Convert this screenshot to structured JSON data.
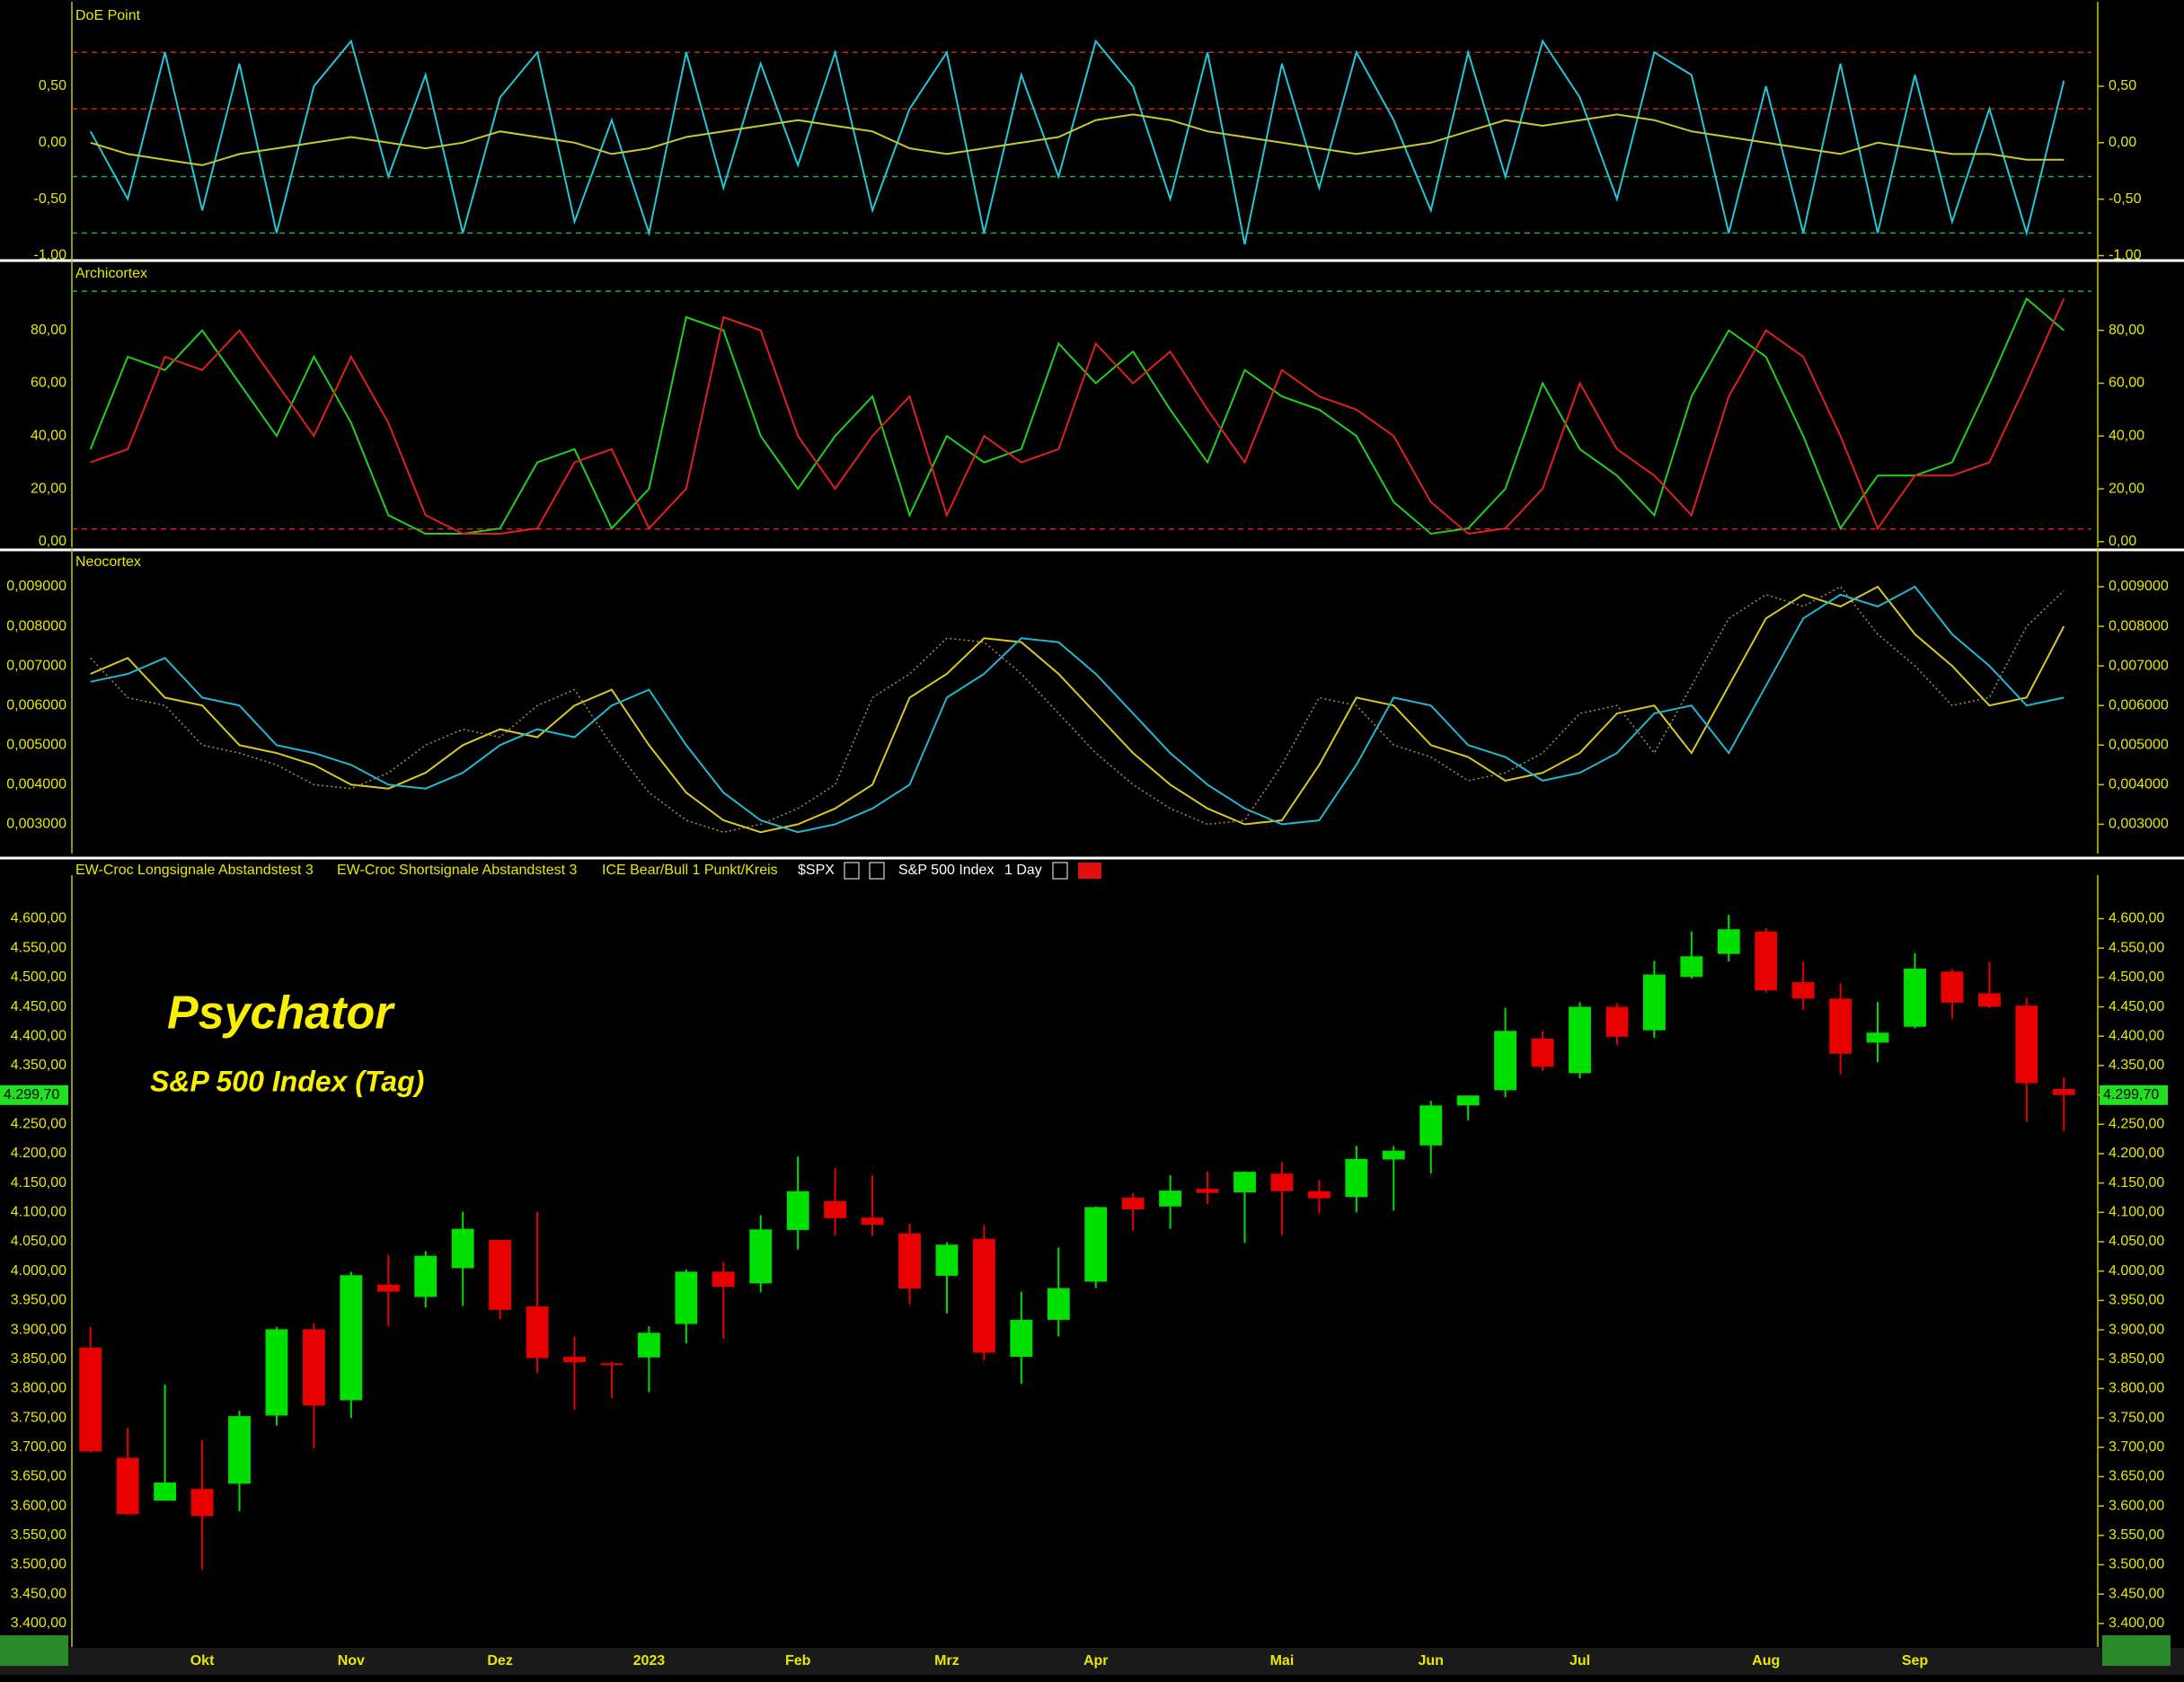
{
  "chart_data": [
    {
      "type": "line",
      "title": "DoE Point",
      "ylim": [
        -1.02,
        1.2
      ],
      "yticks": [
        {
          "value": 0.5,
          "label": "0,50"
        },
        {
          "value": 0,
          "label": "0,00"
        },
        {
          "value": -0.5,
          "label": "-0,50"
        },
        {
          "value": -1,
          "label": "-1,00"
        }
      ],
      "reference_lines": [
        {
          "value": 0.8,
          "color": "#d42020"
        },
        {
          "value": 0.3,
          "color": "#d42020"
        },
        {
          "value": -0.3,
          "color": "#20b040"
        },
        {
          "value": -0.8,
          "color": "#20b040"
        }
      ],
      "series": [
        {
          "color": "#20c8d8",
          "values": [
            0.1,
            -0.5,
            0.8,
            -0.6,
            0.7,
            -0.8,
            0.5,
            0.9,
            -0.3,
            0.6,
            -0.8,
            0.4,
            0.8,
            -0.7,
            0.2,
            -0.8,
            0.8,
            -0.4,
            0.7,
            -0.2,
            0.8,
            -0.6,
            0.3,
            0.8,
            -0.8,
            0.6,
            -0.3,
            0.9,
            0.5,
            -0.5,
            0.8,
            -0.9,
            0.7,
            -0.4,
            0.8,
            0.2,
            -0.6,
            0.8,
            -0.3,
            0.9,
            0.4,
            -0.5,
            0.8,
            0.6,
            -0.8,
            0.5,
            -0.8,
            0.7,
            -0.8,
            0.6,
            -0.7,
            0.3,
            -0.8,
            0.55
          ]
        },
        {
          "color": "#c8c830",
          "values": [
            0.0,
            -0.1,
            -0.15,
            -0.2,
            -0.1,
            -0.05,
            0.0,
            0.05,
            0.0,
            -0.05,
            0.0,
            0.1,
            0.05,
            0.0,
            -0.1,
            -0.05,
            0.05,
            0.1,
            0.15,
            0.2,
            0.15,
            0.1,
            -0.05,
            -0.1,
            -0.05,
            0.0,
            0.05,
            0.2,
            0.25,
            0.2,
            0.1,
            0.05,
            0.0,
            -0.05,
            -0.1,
            -0.05,
            0.0,
            0.1,
            0.2,
            0.15,
            0.2,
            0.25,
            0.2,
            0.1,
            0.05,
            0.0,
            -0.05,
            -0.1,
            0.0,
            -0.05,
            -0.1,
            -0.1,
            -0.15,
            -0.15
          ]
        }
      ]
    },
    {
      "type": "line",
      "title": "Archicortex",
      "ylim": [
        -2.1,
        105.4
      ],
      "yticks": [
        {
          "value": 0,
          "label": "0,00"
        },
        {
          "value": 20,
          "label": "20,00"
        },
        {
          "value": 40,
          "label": "40,00"
        },
        {
          "value": 60,
          "label": "60,00"
        },
        {
          "value": 80,
          "label": "80,00"
        }
      ],
      "reference_lines": [
        {
          "value": 94.8,
          "color": "#20b040"
        },
        {
          "value": 4.8,
          "color": "#d42020"
        }
      ],
      "series": [
        {
          "color": "#20d020",
          "values": [
            35,
            70,
            65,
            80,
            60,
            40,
            70,
            45,
            10,
            3,
            3,
            5,
            30,
            35,
            5,
            20,
            85,
            80,
            40,
            20,
            40,
            55,
            10,
            40,
            30,
            35,
            75,
            60,
            72,
            50,
            30,
            65,
            55,
            50,
            40,
            15,
            3,
            5,
            20,
            60,
            35,
            25,
            10,
            55,
            80,
            70,
            40,
            5,
            25,
            25,
            30,
            60,
            92,
            80
          ]
        },
        {
          "color": "#e02020",
          "values": [
            30,
            35,
            70,
            65,
            80,
            60,
            40,
            70,
            45,
            10,
            3,
            3,
            5,
            30,
            35,
            5,
            20,
            85,
            80,
            40,
            20,
            40,
            55,
            10,
            40,
            30,
            35,
            75,
            60,
            72,
            50,
            30,
            65,
            55,
            50,
            40,
            15,
            3,
            5,
            20,
            60,
            35,
            25,
            10,
            55,
            80,
            70,
            40,
            5,
            25,
            25,
            30,
            60,
            92
          ]
        }
      ]
    },
    {
      "type": "line",
      "title": "Neocortex",
      "ylim": [
        0.00226,
        0.00984
      ],
      "yticks": [
        {
          "value": 0.003,
          "label": "0,003000"
        },
        {
          "value": 0.004,
          "label": "0,004000"
        },
        {
          "value": 0.005,
          "label": "0,005000"
        },
        {
          "value": 0.006,
          "label": "0,006000"
        },
        {
          "value": 0.007,
          "label": "0,007000"
        },
        {
          "value": 0.008,
          "label": "0,008000"
        },
        {
          "value": 0.009,
          "label": "0,009000"
        }
      ],
      "series": [
        {
          "color": "#d8c820",
          "values": [
            0.0068,
            0.0072,
            0.0062,
            0.006,
            0.005,
            0.0048,
            0.0045,
            0.004,
            0.0039,
            0.0043,
            0.005,
            0.0054,
            0.0052,
            0.006,
            0.0064,
            0.005,
            0.0038,
            0.0031,
            0.0028,
            0.003,
            0.0034,
            0.004,
            0.0062,
            0.0068,
            0.0077,
            0.0076,
            0.0068,
            0.0058,
            0.0048,
            0.004,
            0.0034,
            0.003,
            0.0031,
            0.0045,
            0.0062,
            0.006,
            0.005,
            0.0047,
            0.0041,
            0.0043,
            0.0048,
            0.0058,
            0.006,
            0.0048,
            0.0065,
            0.0082,
            0.0088,
            0.0085,
            0.009,
            0.0078,
            0.007,
            0.006,
            0.0062,
            0.008
          ]
        },
        {
          "color": "#20b8d0",
          "values": [
            0.0066,
            0.0068,
            0.0072,
            0.0062,
            0.006,
            0.005,
            0.0048,
            0.0045,
            0.004,
            0.0039,
            0.0043,
            0.005,
            0.0054,
            0.0052,
            0.006,
            0.0064,
            0.005,
            0.0038,
            0.0031,
            0.0028,
            0.003,
            0.0034,
            0.004,
            0.0062,
            0.0068,
            0.0077,
            0.0076,
            0.0068,
            0.0058,
            0.0048,
            0.004,
            0.0034,
            0.003,
            0.0031,
            0.0045,
            0.0062,
            0.006,
            0.005,
            0.0047,
            0.0041,
            0.0043,
            0.0048,
            0.0058,
            0.006,
            0.0048,
            0.0065,
            0.0082,
            0.0088,
            0.0085,
            0.009,
            0.0078,
            0.007,
            0.006,
            0.0062
          ]
        },
        {
          "color": "#a09060",
          "style": "dotted",
          "values": [
            0.0072,
            0.0062,
            0.006,
            0.005,
            0.0048,
            0.0045,
            0.004,
            0.0039,
            0.0043,
            0.005,
            0.0054,
            0.0052,
            0.006,
            0.0064,
            0.005,
            0.0038,
            0.0031,
            0.0028,
            0.003,
            0.0034,
            0.004,
            0.0062,
            0.0068,
            0.0077,
            0.0076,
            0.0068,
            0.0058,
            0.0048,
            0.004,
            0.0034,
            0.003,
            0.0031,
            0.0045,
            0.0062,
            0.006,
            0.005,
            0.0047,
            0.0041,
            0.0043,
            0.0048,
            0.0058,
            0.006,
            0.0048,
            0.0065,
            0.0082,
            0.0088,
            0.0085,
            0.009,
            0.0078,
            0.007,
            0.006,
            0.0062,
            0.008,
            0.0089
          ]
        }
      ]
    },
    {
      "type": "candlestick",
      "title": "Psychator",
      "subtitle": "S&P 500 Index (Tag)",
      "legend_items": [
        "EW-Croc Longsignale Abstandstest 3",
        "EW-Croc Shortsignale Abstandstest 3",
        "ICE Bear/Bull 1 Punkt/Kreis"
      ],
      "symbol": "$SPX",
      "instrument": "S&P 500 Index",
      "interval": "1 Day",
      "up_color": "#00e000",
      "down_color": "#e80000",
      "categories": [
        null,
        null,
        null,
        "Okt",
        null,
        null,
        null,
        "Nov",
        null,
        null,
        null,
        "Dez",
        null,
        null,
        null,
        "2023",
        null,
        null,
        null,
        "Feb",
        null,
        null,
        null,
        "Mrz",
        null,
        null,
        null,
        "Apr",
        null,
        null,
        null,
        null,
        "Mai",
        null,
        null,
        null,
        "Jun",
        null,
        null,
        null,
        "Jul",
        null,
        null,
        null,
        null,
        "Aug",
        null,
        null,
        null,
        "Sep",
        null,
        null,
        null,
        null
      ],
      "open": [
        3870,
        3682,
        3609,
        3629,
        3638,
        3754,
        3901,
        3780,
        3977,
        3956,
        4005,
        4053,
        3940,
        3854,
        3843,
        3853,
        3910,
        3999,
        3979,
        4070,
        4119,
        4091,
        4064,
        3992,
        4055,
        3854,
        3917,
        3982,
        4125,
        4110,
        4140,
        4134,
        4166,
        4136,
        4126,
        4190,
        4214,
        4282,
        4308,
        4396,
        4337,
        4450,
        4410,
        4501,
        4540,
        4578,
        4492,
        4464,
        4389,
        4416,
        4510,
        4473,
        4452,
        4310
      ],
      "high": [
        3905,
        3733,
        3807,
        3712,
        3762,
        3905,
        3911,
        3999,
        4028,
        4034,
        4101,
        4053,
        4101,
        3889,
        3846,
        3906,
        4003,
        4015,
        4095,
        4195,
        4176,
        4163,
        4081,
        4049,
        4078,
        3965,
        4040,
        4110,
        4133,
        4163,
        4170,
        4170,
        4186,
        4155,
        4213,
        4213,
        4290,
        4299,
        4448,
        4409,
        4458,
        4456,
        4528,
        4578,
        4607,
        4584,
        4527,
        4490,
        4458,
        4541,
        4514,
        4527,
        4465,
        4330
      ],
      "low": [
        3691,
        3585,
        3610,
        3492,
        3591,
        3737,
        3698,
        3750,
        3906,
        3938,
        3941,
        3918,
        3827,
        3764,
        3784,
        3794,
        3877,
        3885,
        3964,
        4037,
        4061,
        4060,
        3943,
        3928,
        3848,
        3808,
        3889,
        3971,
        4069,
        4072,
        4114,
        4048,
        4062,
        4098,
        4100,
        4103,
        4166,
        4257,
        4296,
        4341,
        4328,
        4385,
        4397,
        4498,
        4527,
        4474,
        4445,
        4335,
        4356,
        4413,
        4430,
        4448,
        4254,
        4238
      ],
      "close": [
        3693,
        3586,
        3640,
        3583,
        3753,
        3901,
        3771,
        3993,
        3965,
        4026,
        4072,
        3934,
        3852,
        3845,
        3840,
        3895,
        3999,
        3973,
        4071,
        4136,
        4090,
        4079,
        3970,
        4045,
        3861,
        3917,
        3971,
        4109,
        4105,
        4137,
        4133,
        4169,
        4136,
        4124,
        4191,
        4205,
        4282,
        4299,
        4409,
        4348,
        4450,
        4399,
        4505,
        4536,
        4582,
        4478,
        4464,
        4370,
        4406,
        4515,
        4457,
        4450,
        4320,
        4299.7
      ],
      "last_value": {
        "value": 4299.7,
        "label": "4.299,70"
      },
      "ylim": [
        3360,
        4665
      ],
      "yticks": [
        {
          "value": 3400,
          "label": "3.400,00"
        },
        {
          "value": 3450,
          "label": "3.450,00"
        },
        {
          "value": 3500,
          "label": "3.500,00"
        },
        {
          "value": 3550,
          "label": "3.550,00"
        },
        {
          "value": 3600,
          "label": "3.600,00"
        },
        {
          "value": 3650,
          "label": "3.650,00"
        },
        {
          "value": 3700,
          "label": "3.700,00"
        },
        {
          "value": 3750,
          "label": "3.750,00"
        },
        {
          "value": 3800,
          "label": "3.800,00"
        },
        {
          "value": 3850,
          "label": "3.850,00"
        },
        {
          "value": 3900,
          "label": "3.900,00"
        },
        {
          "value": 3950,
          "label": "3.950,00"
        },
        {
          "value": 4000,
          "label": "4.000,00"
        },
        {
          "value": 4050,
          "label": "4.050,00"
        },
        {
          "value": 4100,
          "label": "4.100,00"
        },
        {
          "value": 4150,
          "label": "4.150,00"
        },
        {
          "value": 4200,
          "label": "4.200,00"
        },
        {
          "value": 4250,
          "label": "4.250,00"
        },
        {
          "value": 4300,
          "label": "4.300,00"
        },
        {
          "value": 4350,
          "label": "4.350,00"
        },
        {
          "value": 4400,
          "label": "4.400,00"
        },
        {
          "value": 4450,
          "label": "4.450,00"
        },
        {
          "value": 4500,
          "label": "4.500,00"
        },
        {
          "value": 4550,
          "label": "4.550,00"
        },
        {
          "value": 4600,
          "label": "4.600,00"
        }
      ]
    }
  ]
}
